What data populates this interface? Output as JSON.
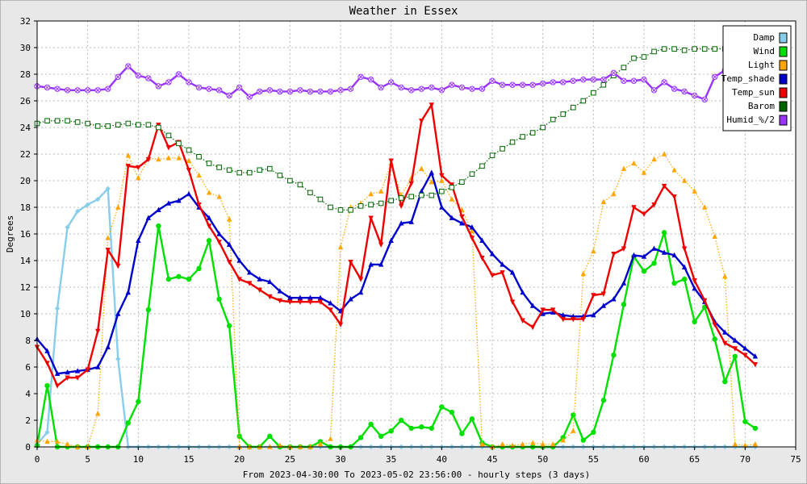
{
  "chart_data": {
    "type": "line",
    "title": "Weather in Essex",
    "xlabel": "From 2023-04-30:00 To 2023-05-02 23:56:00 - hourly steps (3 days)",
    "ylabel": "Degrees",
    "xlim": [
      0,
      75
    ],
    "ylim": [
      0,
      32
    ],
    "x_ticks": [
      0,
      5,
      10,
      15,
      20,
      25,
      30,
      35,
      40,
      45,
      50,
      55,
      60,
      65,
      70,
      75
    ],
    "y_ticks": [
      0,
      2,
      4,
      6,
      8,
      10,
      12,
      14,
      16,
      18,
      20,
      22,
      24,
      26,
      28,
      30,
      32
    ],
    "grid": true,
    "legend_position": "top-right",
    "series": [
      {
        "name": "Damp",
        "color": "#87ceeb",
        "marker": "diamond",
        "style": "solid",
        "values": [
          0.2,
          1.1,
          10.4,
          16.5,
          17.7,
          18.2,
          18.6,
          19.4,
          6.6,
          0,
          0,
          0,
          0,
          0,
          0,
          0,
          0,
          0,
          0,
          0,
          0,
          0,
          0,
          0,
          0,
          0,
          0,
          0,
          0,
          0,
          0,
          0,
          0,
          0,
          0,
          0,
          0,
          0,
          0,
          0,
          0,
          0,
          0,
          0,
          0,
          0,
          0,
          0,
          0,
          0,
          0,
          0,
          0,
          0,
          0,
          0,
          0,
          0,
          0,
          0,
          0,
          0,
          0,
          0,
          0,
          0,
          0,
          0,
          0,
          0,
          0,
          0
        ]
      },
      {
        "name": "Wind",
        "color": "#00e000",
        "marker": "circle",
        "style": "solid",
        "values": [
          0.1,
          4.6,
          0,
          0,
          0,
          0,
          0,
          0,
          0,
          1.8,
          3.4,
          10.3,
          16.6,
          12.6,
          12.8,
          12.6,
          13.4,
          15.5,
          11.1,
          9.1,
          0.8,
          0,
          0,
          0.8,
          0,
          0,
          0,
          0,
          0.4,
          0,
          0,
          0,
          0.7,
          1.7,
          0.8,
          1.2,
          2.0,
          1.4,
          1.5,
          1.4,
          3.0,
          2.6,
          1.0,
          2.1,
          0.3,
          0,
          0,
          0,
          0,
          0,
          0,
          0,
          0.7,
          2.4,
          0.5,
          1.1,
          3.5,
          6.9,
          10.7,
          14.3,
          13.2,
          13.8,
          16.1,
          12.3,
          12.6,
          9.4,
          10.5,
          8.1,
          4.9,
          6.8,
          1.9,
          1.4
        ]
      },
      {
        "name": "Light",
        "color": "#ffa500",
        "marker": "triangle",
        "style": "dotted",
        "values": [
          0.5,
          0.4,
          0.4,
          0.2,
          0,
          0,
          2.5,
          15.7,
          18.0,
          21.9,
          20.2,
          21.7,
          21.6,
          21.7,
          21.7,
          21.5,
          20.4,
          19.1,
          18.8,
          17.1,
          0,
          0,
          0,
          0,
          0.1,
          0,
          0,
          0,
          0.2,
          0.6,
          15.0,
          18.0,
          18.3,
          19.0,
          19.2,
          21.3,
          18.9,
          20.2,
          20.9,
          19.9,
          20.0,
          18.6,
          17.8,
          16.2,
          0.2,
          0,
          0.2,
          0.1,
          0.2,
          0.3,
          0.2,
          0.2,
          0.5,
          1.2,
          13.0,
          14.7,
          18.4,
          19.0,
          20.9,
          21.3,
          20.6,
          21.6,
          22.0,
          20.8,
          20.0,
          19.2,
          18.0,
          15.8,
          12.8,
          0.2,
          0.1,
          0.2
        ]
      },
      {
        "name": "Temp_shade",
        "color": "#0000cc",
        "marker": "triangle",
        "style": "solid",
        "values": [
          8.1,
          7.2,
          5.5,
          5.6,
          5.7,
          5.8,
          6.0,
          7.5,
          10.0,
          11.6,
          15.5,
          17.2,
          17.8,
          18.3,
          18.5,
          19.0,
          18.0,
          17.2,
          16.0,
          15.2,
          14.0,
          13.1,
          12.6,
          12.4,
          11.7,
          11.2,
          11.2,
          11.2,
          11.2,
          10.8,
          10.2,
          11.1,
          11.6,
          13.7,
          13.7,
          15.5,
          16.8,
          16.9,
          19.2,
          20.6,
          18.0,
          17.2,
          16.8,
          16.5,
          15.5,
          14.5,
          13.7,
          13.1,
          11.6,
          10.6,
          10.0,
          10.1,
          9.9,
          9.8,
          9.8,
          9.9,
          10.6,
          11.1,
          12.3,
          14.4,
          14.3,
          14.9,
          14.6,
          14.4,
          13.5,
          11.9,
          10.9,
          9.4,
          8.6,
          8.0,
          7.4,
          6.8
        ]
      },
      {
        "name": "Temp_sun",
        "color": "#ee0000",
        "marker": "inverted-triangle",
        "style": "solid",
        "values": [
          7.5,
          6.3,
          4.6,
          5.2,
          5.2,
          5.8,
          8.7,
          14.8,
          13.6,
          21.1,
          21.0,
          21.6,
          24.2,
          22.5,
          22.9,
          20.8,
          18.2,
          16.6,
          15.4,
          13.9,
          12.6,
          12.3,
          11.8,
          11.3,
          11.0,
          10.9,
          10.9,
          10.9,
          10.9,
          10.3,
          9.2,
          13.9,
          12.6,
          17.2,
          15.2,
          21.5,
          18.1,
          19.8,
          24.5,
          25.7,
          20.4,
          19.7,
          17.3,
          15.7,
          14.2,
          12.9,
          13.1,
          10.9,
          9.5,
          9.0,
          10.3,
          10.3,
          9.6,
          9.6,
          9.6,
          11.4,
          11.5,
          14.5,
          14.9,
          18.0,
          17.5,
          18.2,
          19.6,
          18.8,
          14.9,
          12.5,
          11.0,
          9.2,
          7.8,
          7.4,
          6.9,
          6.2
        ]
      },
      {
        "name": "Barom",
        "color": "#006400",
        "marker": "square",
        "style": "dotted",
        "values": [
          24.3,
          24.5,
          24.5,
          24.5,
          24.4,
          24.3,
          24.1,
          24.1,
          24.2,
          24.3,
          24.2,
          24.2,
          24.0,
          23.4,
          22.8,
          22.3,
          21.8,
          21.3,
          21.0,
          20.8,
          20.6,
          20.6,
          20.8,
          20.9,
          20.4,
          20.0,
          19.7,
          19.1,
          18.6,
          18.0,
          17.8,
          17.8,
          18.1,
          18.2,
          18.3,
          18.5,
          18.7,
          18.8,
          18.9,
          18.9,
          19.2,
          19.5,
          19.9,
          20.5,
          21.1,
          21.9,
          22.4,
          22.9,
          23.3,
          23.6,
          24.0,
          24.6,
          25.0,
          25.5,
          26.0,
          26.6,
          27.2,
          27.9,
          28.5,
          29.2,
          29.3,
          29.7,
          29.9,
          29.9,
          29.8,
          29.9,
          29.9,
          29.9,
          29.9,
          29.8,
          29.9,
          29.9
        ]
      },
      {
        "name": "Humid_%/2",
        "color": "#9933ff",
        "marker": "x-circle",
        "style": "solid",
        "values": [
          27.1,
          27.0,
          26.9,
          26.8,
          26.8,
          26.8,
          26.8,
          26.9,
          27.8,
          28.6,
          27.9,
          27.7,
          27.1,
          27.4,
          28.0,
          27.4,
          27.0,
          26.9,
          26.8,
          26.4,
          27.0,
          26.3,
          26.7,
          26.8,
          26.7,
          26.7,
          26.8,
          26.7,
          26.7,
          26.7,
          26.8,
          26.9,
          27.8,
          27.6,
          27.0,
          27.4,
          27.0,
          26.8,
          26.9,
          27.0,
          26.8,
          27.2,
          27.0,
          26.9,
          26.9,
          27.5,
          27.2,
          27.2,
          27.2,
          27.2,
          27.3,
          27.4,
          27.4,
          27.5,
          27.6,
          27.6,
          27.6,
          28.1,
          27.5,
          27.5,
          27.6,
          26.8,
          27.4,
          26.9,
          26.7,
          26.4,
          26.1,
          27.8,
          28.3,
          27.4,
          27.1,
          27.5
        ]
      }
    ]
  }
}
